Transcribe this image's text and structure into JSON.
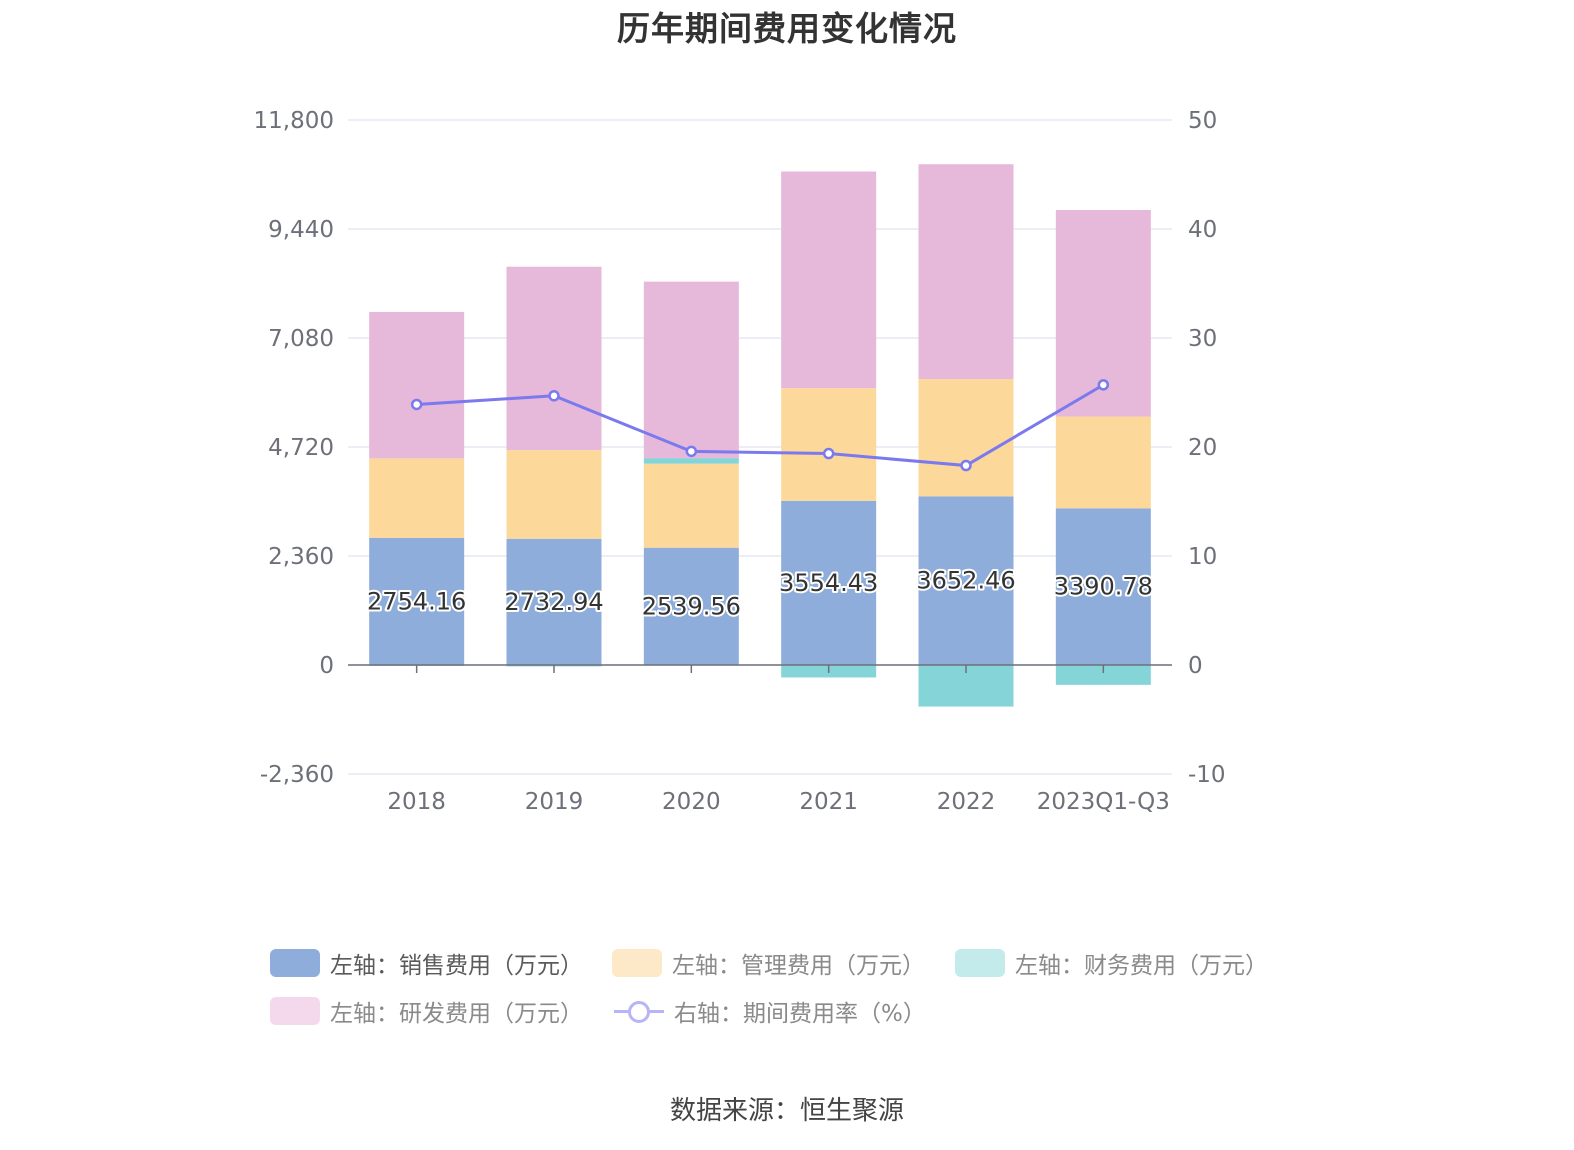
{
  "title": "历年期间费用变化情况",
  "source": "数据来源：恒生聚源",
  "chart_data": {
    "type": "bar",
    "stacked": true,
    "categories": [
      "2018",
      "2019",
      "2020",
      "2021",
      "2022",
      "2023Q1-Q3"
    ],
    "left_axis": {
      "ticks": [
        "11,800",
        "9,440",
        "7,080",
        "4,720",
        "2,360",
        "0",
        "-2,360"
      ],
      "ylim": [
        -2360,
        11800
      ]
    },
    "right_axis": {
      "ticks": [
        "50",
        "40",
        "30",
        "20",
        "10",
        "0",
        "-10"
      ],
      "ylim": [
        -10,
        50
      ]
    },
    "series": [
      {
        "name": "左轴：销售费用（万元）",
        "axis": "left",
        "color": "#8eaddb",
        "values": [
          2754.16,
          2732.94,
          2539.56,
          3554.43,
          3652.46,
          3390.78
        ],
        "labels": [
          "2754.16",
          "2732.94",
          "2539.56",
          "3554.43",
          "3652.46",
          "3390.78"
        ]
      },
      {
        "name": "左轴：管理费用（万元）",
        "axis": "left",
        "color": "#fdd89b",
        "values": [
          1720,
          1920,
          1820,
          2440,
          2540,
          1990
        ]
      },
      {
        "name": "左轴：财务费用（万元）",
        "axis": "left",
        "color": "#85d5d8",
        "values": [
          -20,
          -30,
          120,
          -270,
          -900,
          -430
        ]
      },
      {
        "name": "左轴：研发费用（万元）",
        "axis": "left",
        "color": "#e6b8d9",
        "values": [
          3170,
          3970,
          3820,
          4690,
          4650,
          4470
        ]
      },
      {
        "name": "右轴：期间费用率（%）",
        "axis": "right",
        "type": "line",
        "color": "#7b79ee",
        "values": [
          23.9,
          24.7,
          19.6,
          19.4,
          18.3,
          25.7
        ]
      }
    ],
    "legend_position": "bottom",
    "grid": true
  }
}
